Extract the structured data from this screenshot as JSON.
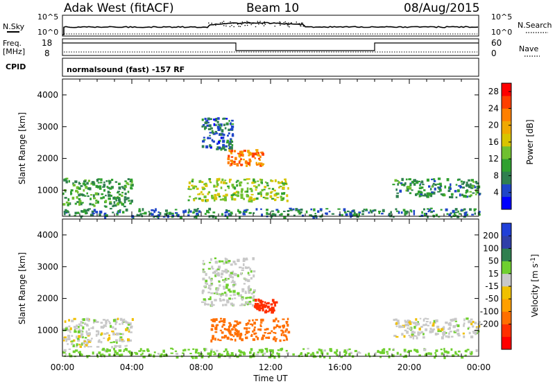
{
  "header": {
    "station": "Adak West (fitACF)",
    "beam": "Beam 10",
    "date": "08/Aug/2015"
  },
  "mini_panels": {
    "nsky_label": "N.Sky",
    "nsearch_label": "N.Search",
    "count_tick_top": "10^5",
    "count_tick_bottom": "10^0",
    "freq_label": "Freq.",
    "freq_unit": "[MHz]",
    "freq_ticks": [
      "18",
      "8"
    ],
    "nave_label": "Nave",
    "nave_ticks": [
      "60",
      "0"
    ],
    "cpid_label": "CPID",
    "cpid_text": "normalsound (fast) -157 RF"
  },
  "colors": {
    "power_scale": [
      "#0000ff",
      "#1f45c8",
      "#2f7f4f",
      "#2fa02f",
      "#6fc02f",
      "#d8c400",
      "#f0a800",
      "#ff7f00",
      "#ff3f00",
      "#ff0000"
    ],
    "velocity_scale": [
      "#1f3fd8",
      "#2f3fa8",
      "#2f7f4f",
      "#6fcf2f",
      "#c8c8c8",
      "#f0c000",
      "#ff9f00",
      "#ff6f00",
      "#ff2f00",
      "#ff0000"
    ]
  },
  "chart_data": [
    {
      "type": "heatmap",
      "panel": "power",
      "xlabel": "",
      "ylabel": "Slant Range [km]",
      "xlim": [
        "00:00",
        "24:00"
      ],
      "ylim": [
        180,
        4500
      ],
      "y_ticks": [
        1000,
        2000,
        3000,
        4000
      ],
      "colorbar_label": "Power [dB]",
      "colorbar_ticks": [
        4,
        8,
        12,
        16,
        20,
        24,
        28
      ],
      "colorbar_range": [
        0,
        30
      ],
      "regions": [
        {
          "t0": 0.0,
          "t1": 4.0,
          "r0": 500,
          "r1": 1400,
          "value": 10
        },
        {
          "t0": 7.2,
          "t1": 13.0,
          "r0": 700,
          "r1": 1400,
          "value": 14
        },
        {
          "t0": 9.5,
          "t1": 11.5,
          "r0": 1800,
          "r1": 2300,
          "value": 22
        },
        {
          "t0": 8.0,
          "t1": 9.8,
          "r0": 2300,
          "r1": 3300,
          "value": 6
        },
        {
          "t0": 19.0,
          "t1": 24.0,
          "r0": 800,
          "r1": 1400,
          "value": 9
        },
        {
          "t0": 0.0,
          "t1": 24.0,
          "r0": 180,
          "r1": 450,
          "value": 8
        }
      ]
    },
    {
      "type": "heatmap",
      "panel": "velocity",
      "xlabel": "Time UT",
      "ylabel": "Slant Range [km]",
      "xlim": [
        "00:00",
        "24:00"
      ],
      "x_ticks": [
        "00:00",
        "04:00",
        "08:00",
        "12:00",
        "16:00",
        "20:00",
        "00:00"
      ],
      "ylim": [
        180,
        4500
      ],
      "y_ticks": [
        1000,
        2000,
        3000,
        4000
      ],
      "colorbar_label": "Velocity [m s^-1]",
      "colorbar_ticks": [
        200,
        100,
        50,
        15,
        -15,
        -50,
        -100,
        -200
      ],
      "regions": [
        {
          "t0": 0.0,
          "t1": 4.0,
          "r0": 500,
          "r1": 1400,
          "value": 0
        },
        {
          "t0": 8.5,
          "t1": 13.0,
          "r0": 700,
          "r1": 1400,
          "value": -120
        },
        {
          "t0": 11.0,
          "t1": 12.3,
          "r0": 1600,
          "r1": 2000,
          "value": -220
        },
        {
          "t0": 19.0,
          "t1": 24.0,
          "r0": 800,
          "r1": 1400,
          "value": 0
        },
        {
          "t0": 8.0,
          "t1": 11.0,
          "r0": 1800,
          "r1": 3300,
          "value": 5
        },
        {
          "t0": 0.0,
          "t1": 24.0,
          "r0": 180,
          "r1": 450,
          "value": 30
        }
      ]
    }
  ]
}
